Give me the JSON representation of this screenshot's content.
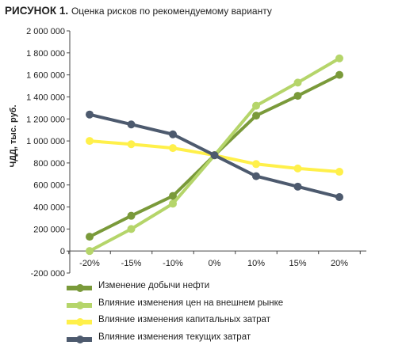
{
  "title": {
    "prefix": "РИСУНОК 1.",
    "text": "Оценка рисков по рекомендуемому варианту"
  },
  "chart_data": {
    "type": "line",
    "ylabel": "ЧДД, тыс. руб.",
    "xlabel": "",
    "categories": [
      "-20%",
      "-15%",
      "-10%",
      "0%",
      "10%",
      "15%",
      "20%"
    ],
    "yticks": [
      "2 000 000",
      "1 800 000",
      "1 600 000",
      "1 400 000",
      "1 200 000",
      "1 000 000",
      "800 000",
      "600 000",
      "400 000",
      "200 000",
      "0",
      "-200 000"
    ],
    "ylim": [
      -200000,
      2000000
    ],
    "grid": false,
    "legend_position": "bottom",
    "series": [
      {
        "name": "Изменение добычи нефти",
        "color": "#7a9a3a",
        "values": [
          130000,
          320000,
          500000,
          870000,
          1230000,
          1410000,
          1600000
        ]
      },
      {
        "name": "Влияние изменения цен на внешнем рынке",
        "color": "#b5d56a",
        "values": [
          0,
          200000,
          430000,
          870000,
          1320000,
          1530000,
          1750000
        ]
      },
      {
        "name": "Влияние изменения капитальных затрат",
        "color": "#fff04a",
        "values": [
          1000000,
          970000,
          935000,
          870000,
          790000,
          750000,
          720000
        ]
      },
      {
        "name": "Влияние изменения текущих затрат",
        "color": "#4d5a6e",
        "values": [
          1240000,
          1150000,
          1060000,
          870000,
          680000,
          585000,
          490000
        ]
      }
    ]
  }
}
